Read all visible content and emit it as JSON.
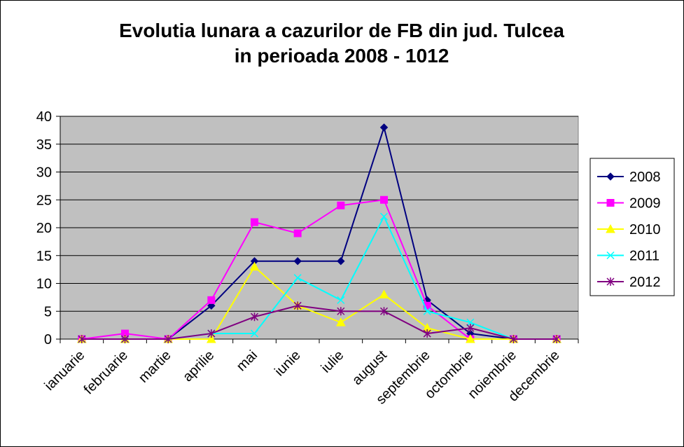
{
  "chart_data": {
    "type": "line",
    "title_lines": [
      "Evolutia lunara a cazurilor de FB din jud. Tulcea",
      "in perioada 2008 - 1012"
    ],
    "xlabel": "",
    "ylabel": "",
    "ylim": [
      0,
      40
    ],
    "yticks": [
      "0",
      "5",
      "10",
      "15",
      "20",
      "25",
      "30",
      "35",
      "40"
    ],
    "grid": true,
    "plot_background": "#C0C0C0",
    "legend_position": "right",
    "categories": [
      "ianuarie",
      "februarie",
      "martie",
      "aprilie",
      "mai",
      "iunie",
      "iulie",
      "august",
      "septembrie",
      "octombrie",
      "noiembrie",
      "decembrie"
    ],
    "series": [
      {
        "name": "2008",
        "color": "#000080",
        "marker": "diamond",
        "values": [
          0,
          0,
          0,
          6,
          14,
          14,
          14,
          38,
          7,
          1,
          0,
          0
        ]
      },
      {
        "name": "2009",
        "color": "#FF00FF",
        "marker": "square",
        "values": [
          0,
          1,
          0,
          7,
          21,
          19,
          24,
          25,
          6,
          0,
          0,
          0
        ]
      },
      {
        "name": "2010",
        "color": "#FFFF00",
        "marker": "triangle",
        "values": [
          0,
          0,
          0,
          0,
          13,
          6,
          3,
          8,
          2,
          0,
          0,
          0
        ]
      },
      {
        "name": "2011",
        "color": "#00FFFF",
        "marker": "x",
        "values": [
          0,
          0,
          0,
          1,
          1,
          11,
          7,
          22,
          5,
          3,
          0,
          0
        ]
      },
      {
        "name": "2012",
        "color": "#800080",
        "marker": "star",
        "values": [
          0,
          0,
          0,
          1,
          4,
          6,
          5,
          5,
          1,
          2,
          0,
          0
        ]
      }
    ]
  }
}
